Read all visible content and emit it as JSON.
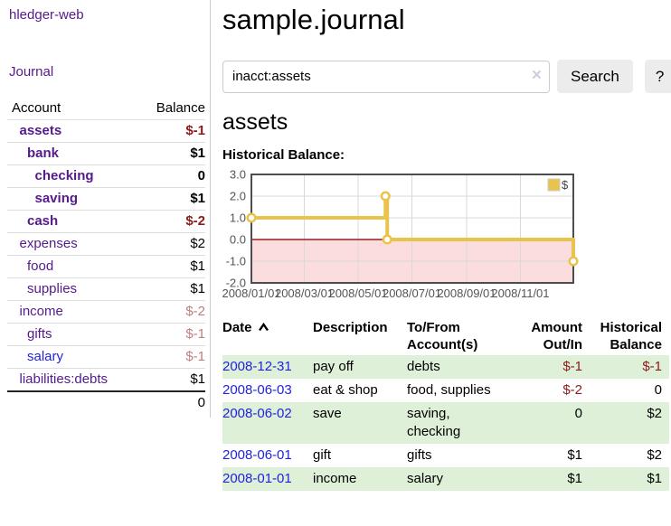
{
  "app": {
    "title": "hledger-web"
  },
  "sidebar": {
    "journal_label": "Journal",
    "accounts": {
      "header_account": "Account",
      "header_balance": "Balance",
      "rows": [
        {
          "account": "assets",
          "balance": "$-1",
          "depth": 1,
          "bold": true,
          "link_color": "purple",
          "balance_color": "neg_strong"
        },
        {
          "account": "bank",
          "balance": "$1",
          "depth": 2,
          "bold": true,
          "link_color": "purple",
          "balance_color": "normal"
        },
        {
          "account": "checking",
          "balance": "0",
          "depth": 3,
          "bold": true,
          "link_color": "purple",
          "balance_color": "normal"
        },
        {
          "account": "saving",
          "balance": "$1",
          "depth": 3,
          "bold": true,
          "link_color": "purple",
          "balance_color": "normal"
        },
        {
          "account": "cash",
          "balance": "$-2",
          "depth": 2,
          "bold": true,
          "link_color": "purple",
          "balance_color": "neg_strong"
        },
        {
          "account": "expenses",
          "balance": "$2",
          "depth": 1,
          "bold": false,
          "link_color": "purple",
          "balance_color": "normal"
        },
        {
          "account": "food",
          "balance": "$1",
          "depth": 2,
          "bold": false,
          "link_color": "purple",
          "balance_color": "normal"
        },
        {
          "account": "supplies",
          "balance": "$1",
          "depth": 2,
          "bold": false,
          "link_color": "purple",
          "balance_color": "normal"
        },
        {
          "account": "income",
          "balance": "$-2",
          "depth": 1,
          "bold": false,
          "link_color": "purple",
          "balance_color": "neg_muted"
        },
        {
          "account": "gifts",
          "balance": "$-1",
          "depth": 2,
          "bold": false,
          "link_color": "purple",
          "balance_color": "neg_muted"
        },
        {
          "account": "salary",
          "balance": "$-1",
          "depth": 2,
          "bold": false,
          "link_color": "blue",
          "balance_color": "neg_muted"
        },
        {
          "account": "liabilities:debts",
          "balance": "$1",
          "depth": 1,
          "bold": false,
          "link_color": "purple",
          "balance_color": "normal"
        }
      ],
      "total": "0"
    }
  },
  "main": {
    "title": "sample.journal",
    "search": {
      "value": "inacct:assets",
      "clear_icon": "×",
      "button_label": "Search",
      "help_label": "?"
    },
    "account_heading": "assets",
    "chart_label": "Historical Balance:",
    "register": {
      "headers": {
        "date": "Date",
        "description": "Description",
        "accounts": "To/From Account(s)",
        "amount": "Amount Out/In",
        "balance": "Historical Balance"
      },
      "rows": [
        {
          "date": "2008-12-31",
          "description": "pay off",
          "accounts": "debts",
          "amount": "$-1",
          "amount_neg": true,
          "balance": "$-1",
          "balance_neg": true
        },
        {
          "date": "2008-06-03",
          "description": "eat & shop",
          "accounts": "food, supplies",
          "amount": "$-2",
          "amount_neg": true,
          "balance": "0",
          "balance_neg": false
        },
        {
          "date": "2008-06-02",
          "description": "save",
          "accounts": "saving, checking",
          "amount": "0",
          "amount_neg": false,
          "balance": "$2",
          "balance_neg": false
        },
        {
          "date": "2008-06-01",
          "description": "gift",
          "accounts": "gifts",
          "amount": "$1",
          "amount_neg": false,
          "balance": "$2",
          "balance_neg": false
        },
        {
          "date": "2008-01-01",
          "description": "income",
          "accounts": "salary",
          "amount": "$1",
          "amount_neg": false,
          "balance": "$1",
          "balance_neg": false
        }
      ]
    }
  },
  "chart_data": {
    "type": "line",
    "title": "Historical Balance",
    "legend": "$",
    "legend_position": "top-right",
    "grid": true,
    "ylim": [
      -2,
      3
    ],
    "y_ticks": [
      {
        "label": "3.0",
        "value": 3
      },
      {
        "label": "2.0",
        "value": 2
      },
      {
        "label": "1.0",
        "value": 1
      },
      {
        "label": "0.0",
        "value": 0
      },
      {
        "label": "-1.0",
        "value": -1
      },
      {
        "label": "-2.0",
        "value": -2
      }
    ],
    "x_range_days": [
      1,
      366
    ],
    "x_ticks": [
      {
        "label": "2008/01/01",
        "day": 1
      },
      {
        "label": "2008/03/01",
        "day": 61
      },
      {
        "label": "2008/05/01",
        "day": 122
      },
      {
        "label": "2008/07/01",
        "day": 183
      },
      {
        "label": "2008/09/01",
        "day": 245
      },
      {
        "label": "2008/11/01",
        "day": 306
      }
    ],
    "series": [
      {
        "name": "$",
        "style": "step",
        "points": [
          {
            "date": "2008/01/01",
            "day": 1,
            "value": 1
          },
          {
            "date": "2008/06/01",
            "day": 153,
            "value": 2
          },
          {
            "date": "2008/06/03",
            "day": 155,
            "value": 0
          },
          {
            "date": "2008/12/31",
            "day": 366,
            "value": -1
          }
        ]
      }
    ],
    "negative_region": {
      "from": -2,
      "to": 0
    }
  },
  "colors": {
    "link_purple": "#551a8b",
    "link_blue": "#2222dd",
    "neg_strong": "#8b1a1a",
    "neg_muted": "#bd7f7f",
    "row_green": "#dff0d8",
    "series_gold": "#e9c44d",
    "negative_fill": "#fcdddd",
    "zero_line": "#9b1c1c",
    "button_bg": "#ececec",
    "divider": "#cccccc",
    "row_border": "#dddddd",
    "tick_text": "#545454",
    "chart_border": "#4d4d4d",
    "grid_line": "#d9d9d9"
  }
}
